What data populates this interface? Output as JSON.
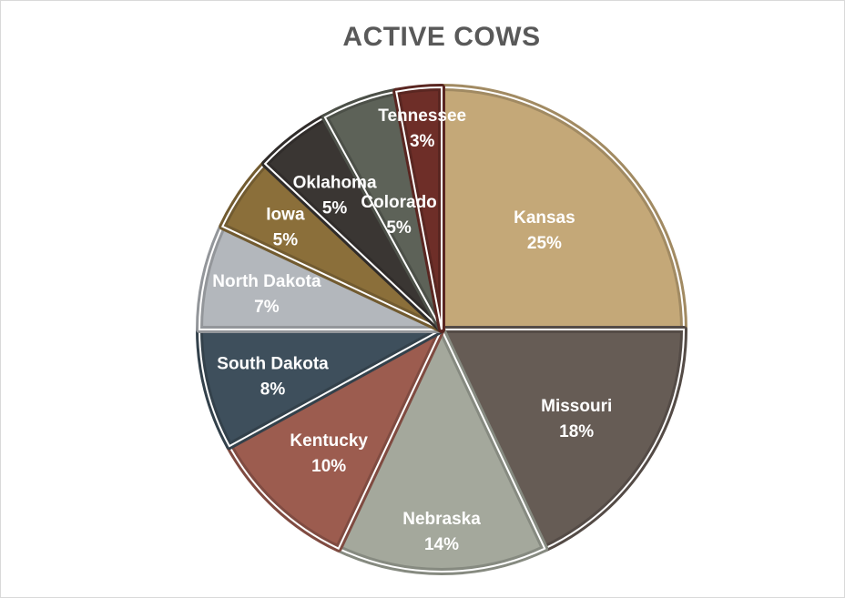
{
  "chart_data": {
    "type": "pie",
    "title": "ACTIVE COWS",
    "slices": [
      {
        "label": "Kansas",
        "value": 25,
        "pct_label": "25%",
        "color": "#c4a878"
      },
      {
        "label": "Missouri",
        "value": 18,
        "pct_label": "18%",
        "color": "#665c55"
      },
      {
        "label": "Nebraska",
        "value": 14,
        "pct_label": "14%",
        "color": "#a4a89c"
      },
      {
        "label": "Kentucky",
        "value": 10,
        "pct_label": "10%",
        "color": "#9c5c4f"
      },
      {
        "label": "South Dakota",
        "value": 8,
        "pct_label": "8%",
        "color": "#3e4f5c"
      },
      {
        "label": "North Dakota",
        "value": 7,
        "pct_label": "7%",
        "color": "#b3b7bc"
      },
      {
        "label": "Iowa",
        "value": 5,
        "pct_label": "5%",
        "color": "#8b6f3a"
      },
      {
        "label": "Oklahoma",
        "value": 5,
        "pct_label": "5%",
        "color": "#3a3633"
      },
      {
        "label": "Colorado",
        "value": 5,
        "pct_label": "5%",
        "color": "#5d6258"
      },
      {
        "label": "Tennessee",
        "value": 3,
        "pct_label": "3%",
        "color": "#6e2e28"
      }
    ]
  }
}
